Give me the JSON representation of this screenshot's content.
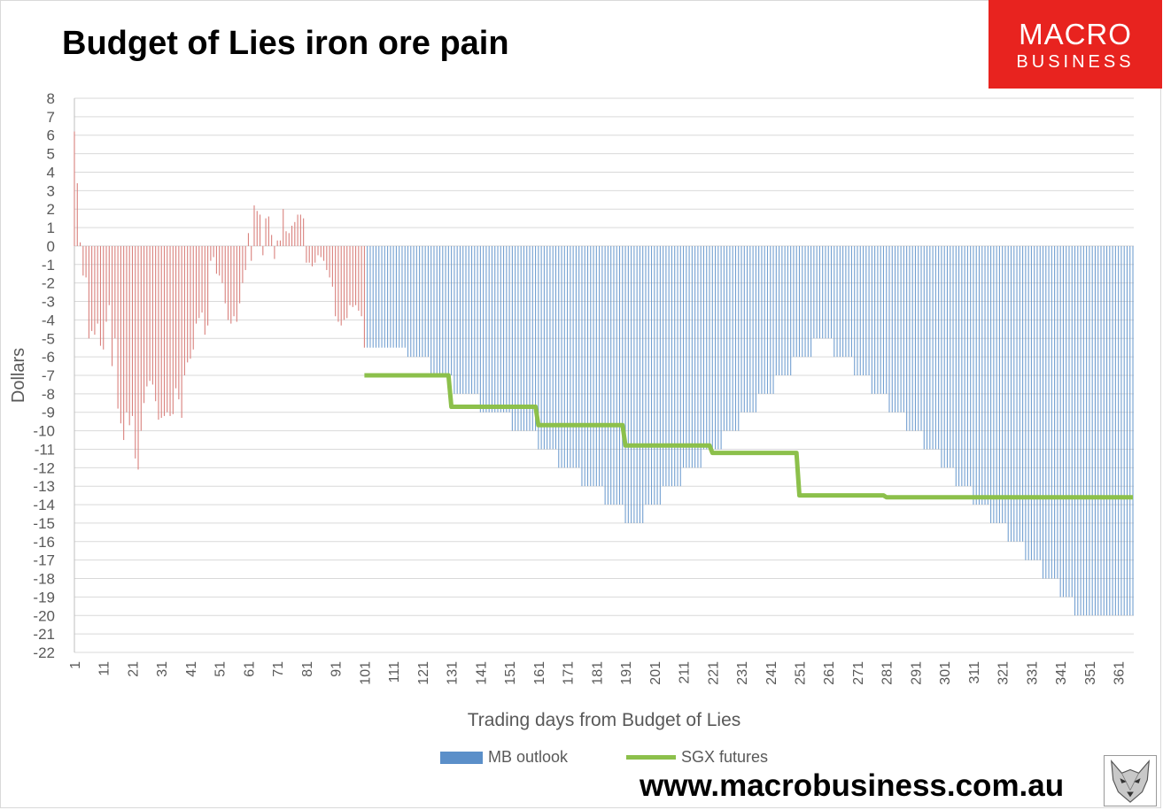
{
  "header": {
    "title": "Budget of Lies iron ore pain",
    "logo_line1": "MACRO",
    "logo_line2": "BUSINESS"
  },
  "footer": {
    "website": "www.macrobusiness.com.au"
  },
  "colors": {
    "positive_bars": "#d9817d",
    "mb_outlook": "#5b8fc9",
    "sgx_futures": "#8cc04b",
    "logo_bg": "#e8231f"
  },
  "chart_data": {
    "type": "bar",
    "title": "Budget of Lies iron ore pain",
    "xlabel": "Trading days from Budget of Lies",
    "ylabel": "Dollars",
    "ylim": [
      -22,
      8
    ],
    "xlim": [
      1,
      366
    ],
    "grid": true,
    "legend_position": "bottom",
    "x_tick_labels": [
      "1",
      "11",
      "21",
      "31",
      "41",
      "51",
      "61",
      "71",
      "81",
      "91",
      "101",
      "111",
      "121",
      "131",
      "141",
      "151",
      "161",
      "171",
      "181",
      "191",
      "201",
      "211",
      "221",
      "231",
      "241",
      "251",
      "261",
      "271",
      "281",
      "291",
      "301",
      "311",
      "321",
      "331",
      "341",
      "351",
      "361"
    ],
    "y_ticks": [
      8,
      7,
      6,
      5,
      4,
      3,
      2,
      1,
      0,
      -1,
      -2,
      -3,
      -4,
      -5,
      -6,
      -7,
      -8,
      -9,
      -10,
      -11,
      -12,
      -13,
      -14,
      -15,
      -16,
      -17,
      -18,
      -19,
      -20,
      -21,
      -22
    ],
    "series": [
      {
        "name": "",
        "type": "bar",
        "x_start": 1,
        "values": [
          6.2,
          3.4,
          0.2,
          -1.6,
          -1.7,
          -5.0,
          -4.6,
          -4.8,
          -4.2,
          -5.4,
          -5.6,
          -4.1,
          -3.2,
          -6.5,
          -5.0,
          -8.8,
          -9.6,
          -10.5,
          -9.0,
          -9.7,
          -9.2,
          -11.5,
          -12.1,
          -10.0,
          -8.5,
          -7.6,
          -7.3,
          -7.5,
          -8.4,
          -9.4,
          -9.3,
          -9.2,
          -9.0,
          -9.2,
          -9.1,
          -7.7,
          -8.3,
          -9.3,
          -7.0,
          -6.3,
          -6.1,
          -5.6,
          -4.2,
          -3.9,
          -3.6,
          -4.8,
          -4.3,
          -0.8,
          -0.6,
          -1.5,
          -1.6,
          -2.0,
          -3.1,
          -4.0,
          -4.2,
          -3.8,
          -4.1,
          -3.1,
          -2.0,
          -1.3,
          0.7,
          -0.8,
          2.2,
          1.9,
          1.7,
          -0.5,
          1.5,
          1.6,
          0.6,
          -0.7,
          0.3,
          0.3,
          2.0,
          0.8,
          0.7,
          1.1,
          1.3,
          1.7,
          1.7,
          1.5,
          -0.9,
          -0.9,
          -1.1,
          -0.9,
          -0.5,
          -0.6,
          -0.8,
          -1.3,
          -1.7,
          -2.2,
          -3.8,
          -4.1,
          -4.3,
          -4.0,
          -3.9,
          -3.2,
          -3.3,
          -3.2,
          -3.5,
          -3.8,
          -5.5
        ]
      },
      {
        "name": "MB outlook",
        "type": "bar",
        "steps": [
          {
            "from": 102,
            "to": 115,
            "value": -5.5
          },
          {
            "from": 116,
            "to": 123,
            "value": -6
          },
          {
            "from": 124,
            "to": 131,
            "value": -7
          },
          {
            "from": 132,
            "to": 140,
            "value": -8
          },
          {
            "from": 141,
            "to": 151,
            "value": -9
          },
          {
            "from": 152,
            "to": 160,
            "value": -10
          },
          {
            "from": 161,
            "to": 167,
            "value": -11
          },
          {
            "from": 168,
            "to": 175,
            "value": -12
          },
          {
            "from": 176,
            "to": 183,
            "value": -13
          },
          {
            "from": 184,
            "to": 190,
            "value": -14
          },
          {
            "from": 191,
            "to": 197,
            "value": -15
          },
          {
            "from": 198,
            "to": 203,
            "value": -14
          },
          {
            "from": 204,
            "to": 210,
            "value": -13
          },
          {
            "from": 211,
            "to": 217,
            "value": -12
          },
          {
            "from": 218,
            "to": 224,
            "value": -11
          },
          {
            "from": 225,
            "to": 230,
            "value": -10
          },
          {
            "from": 231,
            "to": 236,
            "value": -9
          },
          {
            "from": 237,
            "to": 242,
            "value": -8
          },
          {
            "from": 243,
            "to": 248,
            "value": -7
          },
          {
            "from": 249,
            "to": 255,
            "value": -6
          },
          {
            "from": 256,
            "to": 262,
            "value": -5
          },
          {
            "from": 263,
            "to": 269,
            "value": -6
          },
          {
            "from": 270,
            "to": 275,
            "value": -7
          },
          {
            "from": 276,
            "to": 281,
            "value": -8
          },
          {
            "from": 282,
            "to": 287,
            "value": -9
          },
          {
            "from": 288,
            "to": 293,
            "value": -10
          },
          {
            "from": 294,
            "to": 299,
            "value": -11
          },
          {
            "from": 300,
            "to": 304,
            "value": -12
          },
          {
            "from": 305,
            "to": 310,
            "value": -13
          },
          {
            "from": 311,
            "to": 316,
            "value": -14
          },
          {
            "from": 317,
            "to": 322,
            "value": -15
          },
          {
            "from": 323,
            "to": 328,
            "value": -16
          },
          {
            "from": 329,
            "to": 334,
            "value": -17
          },
          {
            "from": 335,
            "to": 340,
            "value": -18
          },
          {
            "from": 341,
            "to": 345,
            "value": -19
          },
          {
            "from": 346,
            "to": 366,
            "value": -20
          }
        ]
      },
      {
        "name": "SGX futures",
        "type": "line",
        "points": [
          [
            101,
            -7
          ],
          [
            130,
            -7
          ],
          [
            131,
            -8.7
          ],
          [
            160,
            -8.7
          ],
          [
            161,
            -9.7
          ],
          [
            190,
            -9.7
          ],
          [
            191,
            -10.8
          ],
          [
            220,
            -10.8
          ],
          [
            221,
            -11.2
          ],
          [
            250,
            -11.2
          ],
          [
            251,
            -13.5
          ],
          [
            280,
            -13.5
          ],
          [
            281,
            -13.6
          ],
          [
            366,
            -13.6
          ]
        ]
      }
    ]
  }
}
